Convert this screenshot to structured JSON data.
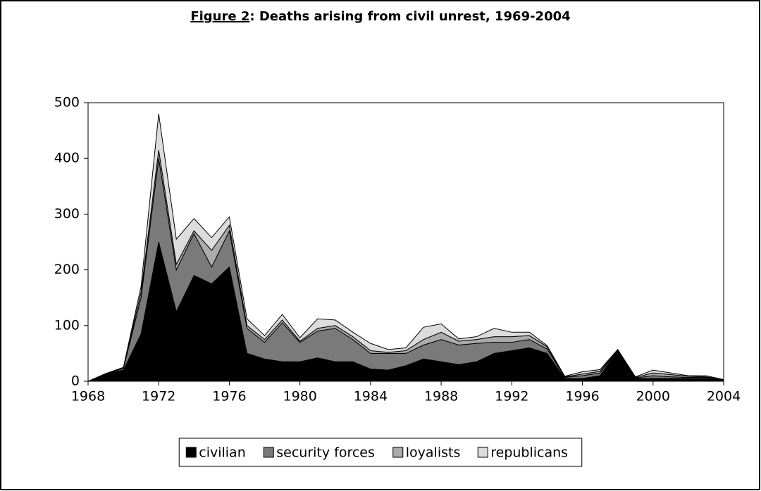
{
  "chart_data": {
    "type": "stacked_area",
    "title_label": "Figure 2",
    "title": ": Deaths arising from civil unrest, 1969-2004",
    "x": [
      1968,
      1969,
      1970,
      1971,
      1972,
      1973,
      1974,
      1975,
      1976,
      1977,
      1978,
      1979,
      1980,
      1981,
      1982,
      1983,
      1984,
      1985,
      1986,
      1987,
      1988,
      1989,
      1990,
      1991,
      1992,
      1993,
      1994,
      1995,
      1996,
      1997,
      1998,
      1999,
      2000,
      2001,
      2002,
      2003,
      2004
    ],
    "series": [
      {
        "name": "civilian",
        "color": "#000000",
        "values": [
          0,
          13,
          20,
          85,
          250,
          125,
          190,
          175,
          205,
          50,
          40,
          35,
          35,
          42,
          35,
          35,
          22,
          20,
          28,
          40,
          35,
          30,
          35,
          50,
          55,
          60,
          50,
          5,
          5,
          10,
          55,
          5,
          5,
          5,
          5,
          5,
          2
        ]
      },
      {
        "name": "security forces",
        "color": "#7a7a7a",
        "values": [
          0,
          0,
          3,
          65,
          150,
          75,
          75,
          30,
          65,
          45,
          30,
          70,
          35,
          48,
          60,
          40,
          28,
          30,
          22,
          25,
          40,
          35,
          33,
          20,
          15,
          15,
          8,
          2,
          5,
          5,
          1,
          1,
          5,
          3,
          2,
          2,
          1
        ]
      },
      {
        "name": "loyalists",
        "color": "#ababab",
        "values": [
          0,
          0,
          1,
          10,
          15,
          10,
          5,
          30,
          10,
          5,
          5,
          5,
          2,
          5,
          5,
          5,
          5,
          2,
          5,
          10,
          13,
          7,
          7,
          10,
          10,
          7,
          4,
          1,
          3,
          3,
          1,
          1,
          5,
          4,
          2,
          1,
          0
        ]
      },
      {
        "name": "republicans",
        "color": "#dcdcdc",
        "values": [
          0,
          1,
          1,
          10,
          65,
          45,
          22,
          23,
          15,
          12,
          7,
          10,
          6,
          17,
          10,
          8,
          13,
          5,
          5,
          22,
          15,
          4,
          5,
          15,
          8,
          6,
          2,
          1,
          4,
          3,
          0,
          1,
          5,
          3,
          1,
          2,
          0
        ]
      }
    ],
    "xlim": [
      1968,
      2004
    ],
    "xticks": [
      1968,
      1972,
      1976,
      1980,
      1984,
      1988,
      1992,
      1996,
      2000,
      2004
    ],
    "ylim": [
      0,
      500
    ],
    "yticks": [
      0,
      100,
      200,
      300,
      400,
      500
    ],
    "legend": "bottom"
  }
}
